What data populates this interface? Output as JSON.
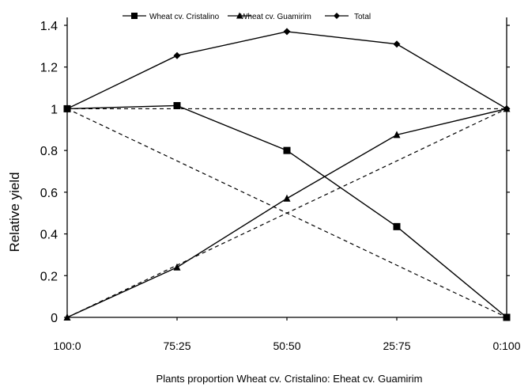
{
  "chart_data": {
    "type": "line",
    "categories": [
      "100:0",
      "75:25",
      "50:50",
      "25:75",
      "0:100"
    ],
    "series": [
      {
        "name": "Wheat cv. Cristalino",
        "marker": "square",
        "values": [
          1.0,
          1.015,
          0.8,
          0.435,
          0.0
        ]
      },
      {
        "name": "Wheat cv. Guamirim",
        "marker": "triangle",
        "values": [
          0.0,
          0.24,
          0.57,
          0.875,
          1.0
        ]
      },
      {
        "name": "Total",
        "marker": "diamond",
        "values": [
          1.0,
          1.255,
          1.37,
          1.31,
          1.0
        ]
      }
    ],
    "reference_lines": [
      {
        "style": "dashed",
        "values": [
          1.0,
          0.75,
          0.5,
          0.25,
          0.0
        ]
      },
      {
        "style": "dashed",
        "values": [
          0.0,
          0.25,
          0.5,
          0.75,
          1.0
        ]
      },
      {
        "style": "dashed",
        "values": [
          1.0,
          1.0,
          1.0,
          1.0,
          1.0
        ]
      }
    ],
    "y_ticks": [
      "0",
      "0.2",
      "0.4",
      "0.6",
      "0.8",
      "1",
      "1.2",
      "1.4"
    ],
    "ylim": [
      0,
      1.4
    ],
    "ylabel": "Relative yield",
    "xlabel": "Plants proportion Wheat cv. Cristalino: Eheat cv. Guamirim",
    "title": "",
    "legend_placement": "top",
    "grid": false,
    "colors": {
      "line": "#000000",
      "background": "#ffffff"
    }
  }
}
